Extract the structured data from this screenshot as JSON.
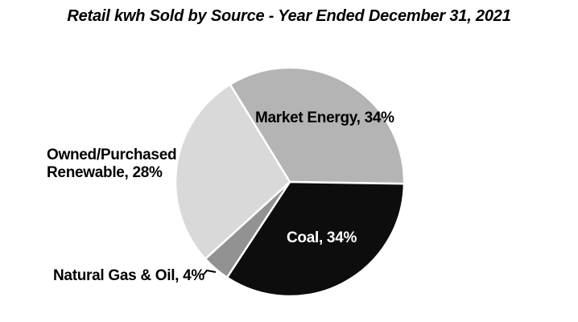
{
  "title": "Retail kwh Sold by Source - Year Ended December 31, 2021",
  "chart_data": {
    "type": "pie",
    "title": "Retail kwh Sold by Source - Year Ended December 31, 2021",
    "unit": "%",
    "legend_position": "none",
    "start_angle_deg": -31.5,
    "direction": "clockwise",
    "slices": [
      {
        "id": "market-energy",
        "label": "Market Energy",
        "value": 34,
        "color": "#b4b4b4",
        "label_placement": "inside",
        "label_color": "#000000"
      },
      {
        "id": "coal",
        "label": "Coal",
        "value": 34,
        "color": "#0d0d0d",
        "label_placement": "inside",
        "label_color": "#ffffff"
      },
      {
        "id": "natural-gas-oil",
        "label": "Natural Gas & Oil",
        "value": 4,
        "color": "#929292",
        "label_placement": "outside",
        "label_color": "#000000"
      },
      {
        "id": "renewable",
        "label": "Owned/Purchased Renewable",
        "value": 28,
        "color": "#d9d9d9",
        "label_placement": "outside",
        "label_color": "#000000"
      }
    ]
  },
  "labels": {
    "market": "Market Energy, 34%",
    "coal": "Coal, 34%",
    "gas": "Natural Gas & Oil, 4%",
    "renewable_line1": "Owned/Purchased",
    "renewable_line2": "Renewable, 28%"
  }
}
